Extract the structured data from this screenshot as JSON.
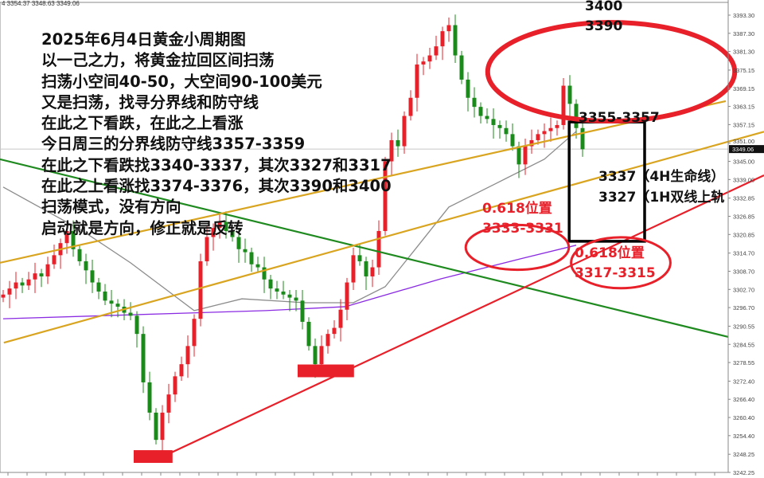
{
  "header": {
    "ohlc_text": "4 3354.37 3348.63 3349.06"
  },
  "notes": [
    "2025年6月4日黄金小周期图",
    "以一己之力，将黄金拉回区间扫荡",
    "扫荡小空间40-50，大空间90-100美元",
    "又是扫荡，找寻分界线和防守线",
    "在此之下看跌，在此之上看涨",
    "今日周三的分界线防守线3357-3359",
    "在此之下看跌找3340-3337，其次3327和3317",
    "在此之上看涨找3374-3376，其次3390和3400",
    "扫荡模式，没有方向",
    "启动就是方向，修正就是反转"
  ],
  "annotations": {
    "target_top_1": "3400",
    "target_top_2": "3390",
    "box_top": "3355-3357",
    "support_1": "3337（4H生命线）",
    "support_2": "3327（1H双线上轨",
    "fib_left_title": "0.618位置",
    "fib_left_range": "3333-3331",
    "fib_right_title": "0.618位置",
    "fib_right_range": "3317-3315"
  },
  "colors": {
    "up": "#e8202a",
    "down": "#1a8a1a",
    "green_line": "#1f8a1f",
    "yellow_line": "#d9a520",
    "red_line": "#e8202a",
    "purple_ma": "#8a2be2",
    "gray_ma": "#8c8c8c",
    "ellipse": "#e8202a",
    "box": "#000000"
  },
  "chart_data": {
    "type": "candlestick",
    "symbol_info": "XAUUSD",
    "ylim": [
      3242.25,
      3397.6
    ],
    "y_ticks": [
      "3393.30",
      "3387.30",
      "3381.30",
      "3375.15",
      "3369.15",
      "3363.15",
      "3357.15",
      "3351.00",
      "3345.00",
      "3339.00",
      "3332.85",
      "3326.85",
      "3320.85",
      "3314.70",
      "3308.70",
      "3302.70",
      "3296.70",
      "3290.55",
      "3284.55",
      "3278.55",
      "3272.40",
      "3266.40",
      "3260.40",
      "3254.40",
      "3248.25",
      "3242.25"
    ],
    "current_price": "3349.06",
    "closes": [
      3301,
      3303,
      3305,
      3304,
      3306,
      3308,
      3307,
      3311,
      3314,
      3318,
      3322,
      3316,
      3312,
      3309,
      3305,
      3302,
      3299,
      3298,
      3297,
      3295,
      3294,
      3288,
      3272,
      3262,
      3253,
      3262,
      3268,
      3274,
      3278,
      3284,
      3293,
      3312,
      3320,
      3323,
      3325,
      3322,
      3320,
      3316,
      3315,
      3311,
      3310,
      3306,
      3303,
      3302,
      3301,
      3300,
      3299,
      3292,
      3284,
      3278,
      3284,
      3288,
      3290,
      3296,
      3305,
      3314,
      3312,
      3307,
      3310,
      3322,
      3345,
      3352,
      3350,
      3360,
      3366,
      3377,
      3378,
      3380,
      3383,
      3388,
      3390,
      3380,
      3372,
      3366,
      3363,
      3360,
      3359,
      3357,
      3356,
      3354,
      3350,
      3344,
      3350,
      3352,
      3354,
      3355,
      3356,
      3357,
      3370,
      3364,
      3356,
      3349
    ],
    "moving_averages": [
      {
        "color_key": "purple_ma",
        "points": [
          [
            0,
            3293
          ],
          [
            41.25,
            3295.7
          ],
          [
            53.75,
            3297
          ],
          [
            68.75,
            3306.2
          ],
          [
            81.25,
            3312.8
          ],
          [
            90,
            3317.3
          ]
        ]
      },
      {
        "color_key": "gray_ma",
        "points": [
          [
            0,
            3336.5
          ],
          [
            12.5,
            3322
          ],
          [
            20,
            3311.5
          ],
          [
            30,
            3295.7
          ],
          [
            37.5,
            3299.6
          ],
          [
            47.5,
            3298.3
          ],
          [
            55,
            3298.3
          ],
          [
            60,
            3303.6
          ],
          [
            65,
            3316.7
          ],
          [
            70,
            3329.9
          ],
          [
            77.5,
            3337.8
          ],
          [
            85,
            3345.7
          ],
          [
            90,
            3354.9
          ]
        ]
      }
    ],
    "trendlines": [
      {
        "color_key": "green_line",
        "from": [
          0,
          3345.7
        ],
        "to": [
          114.4,
          3287.0
        ]
      },
      {
        "color_key": "yellow_line",
        "from": [
          0,
          3311.5
        ],
        "to": [
          114,
          3364.9
        ]
      },
      {
        "color_key": "yellow_line",
        "from": [
          0.6,
          3285.1
        ],
        "to": [
          120,
          3354.8
        ]
      },
      {
        "color_key": "red_line",
        "from": [
          23.75,
          3245.7
        ],
        "to": [
          120,
          3340.4
        ]
      }
    ],
    "zones": [
      {
        "kind": "red-bar",
        "from": [
          21,
          3249.6
        ],
        "to": [
          27.1,
          3245.4
        ]
      },
      {
        "kind": "red-bar",
        "from": [
          46.75,
          3277.9
        ],
        "to": [
          55.6,
          3273.7
        ]
      },
      {
        "kind": "box",
        "from": [
          89.4,
          3358
        ],
        "to": [
          101.25,
          3318.6
        ]
      }
    ],
    "ellipses": [
      {
        "center": [
          96,
          3374.6
        ],
        "r_index": 19.4,
        "r_price": 16.3
      },
      {
        "center": [
          81.25,
          3316.6
        ],
        "r_index": 8.1,
        "r_price": 7.4
      },
      {
        "center": [
          97.5,
          3311.5
        ],
        "r_index": 7.8,
        "r_price": 8.4
      }
    ]
  }
}
